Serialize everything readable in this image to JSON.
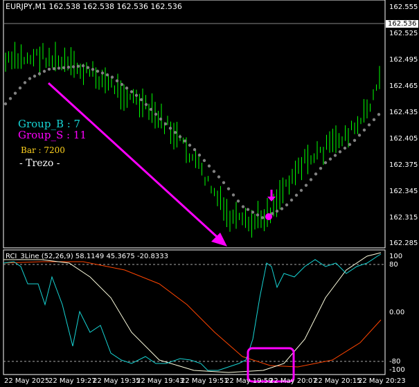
{
  "header": {
    "symbol_info": "EURJPY,M1  162.538 162.538 162.536 162.536"
  },
  "overlay": {
    "group_b": "Group_B : 7",
    "group_s": "Group_S : 11",
    "bar": "Bar : 7200",
    "trezo": "- Trezo -"
  },
  "price_axis": {
    "labels": [
      "162.555",
      "162.525",
      "162.495",
      "162.465",
      "162.435",
      "162.405",
      "162.375",
      "162.345",
      "162.315",
      "162.285"
    ],
    "current_price": "162.536"
  },
  "indicator": {
    "title": "RCI_3Line (52,26,9) 58.1149 45.3675 -20.8333",
    "axis_labels": [
      "100",
      "80",
      "0.00",
      "-80",
      "-100"
    ]
  },
  "time_axis": {
    "labels": [
      "22 May 2025",
      "22 May 19:27",
      "22 May 19:35",
      "22 May 19:43",
      "22 May 19:51",
      "22 May 19:59",
      "22 May 20:07",
      "22 May 20:15",
      "22 May 20:23"
    ]
  },
  "colors": {
    "background": "#000000",
    "candle": "#00ff00",
    "dots": "#808080",
    "arrow": "#ff00ff",
    "rci_short": "#17d5d5",
    "rci_mid": "#ffffe0",
    "rci_long": "#ff4500",
    "highlight_box": "#ff00ff"
  }
}
